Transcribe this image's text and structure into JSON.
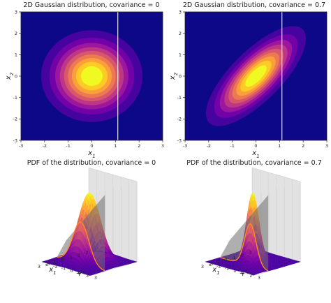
{
  "figure": {
    "panels": [
      {
        "title": "2D Gaussian distribution, covariance = 0",
        "kind": "contour",
        "covariance": 0,
        "xlabel": "x1",
        "ylabel": "x2"
      },
      {
        "title": "2D Gaussian distribution, covariance = 0.7",
        "kind": "contour",
        "covariance": 0.7,
        "xlabel": "x1",
        "ylabel": "x2"
      },
      {
        "title": "PDF of the distribution, covariance = 0",
        "kind": "surface",
        "covariance": 0,
        "xlabel": "x1",
        "ylabel": "x2"
      },
      {
        "title": "PDF of the distribution, covariance = 0.7",
        "kind": "surface",
        "covariance": 0.7,
        "xlabel": "x1",
        "ylabel": "x2"
      }
    ]
  },
  "chart_data": [
    {
      "type": "heatmap",
      "title": "2D Gaussian distribution, covariance = 0",
      "xlabel": "x1",
      "ylabel": "x2",
      "xlim": [
        -3,
        3
      ],
      "ylim": [
        -3,
        3
      ],
      "xticks": [
        -3,
        -2,
        -1,
        0,
        1,
        2,
        3
      ],
      "yticks": [
        -3,
        -2,
        -1,
        0,
        1,
        2,
        3
      ],
      "mean": [
        0,
        0
      ],
      "covariance": 0,
      "variance": [
        1,
        1
      ],
      "contour_levels": 9,
      "colormap": [
        "#0d0887",
        "#46039f",
        "#7201a8",
        "#9c179e",
        "#bd3786",
        "#d8576b",
        "#ed7953",
        "#fb9f3a",
        "#fdca26",
        "#f0f921"
      ],
      "vertical_line_x": 1.1
    },
    {
      "type": "heatmap",
      "title": "2D Gaussian distribution, covariance = 0.7",
      "xlabel": "x1",
      "ylabel": "x2",
      "xlim": [
        -3,
        3
      ],
      "ylim": [
        -3,
        3
      ],
      "xticks": [
        -3,
        -2,
        -1,
        0,
        1,
        2,
        3
      ],
      "yticks": [
        -3,
        -2,
        -1,
        0,
        1,
        2,
        3
      ],
      "mean": [
        0,
        0
      ],
      "covariance": 0.7,
      "variance": [
        1,
        1
      ],
      "contour_levels": 9,
      "colormap": [
        "#0d0887",
        "#46039f",
        "#7201a8",
        "#9c179e",
        "#bd3786",
        "#d8576b",
        "#ed7953",
        "#fb9f3a",
        "#fdca26",
        "#f0f921"
      ],
      "vertical_line_x": 1.1
    },
    {
      "type": "area",
      "title": "PDF of the distribution, covariance = 0",
      "xlabel": "x1",
      "ylabel": "x2",
      "xlim": [
        -3,
        3
      ],
      "ylim": [
        -3,
        3
      ],
      "xticks": [
        -3,
        -2,
        -1,
        0,
        1,
        2,
        3
      ],
      "yticks": [
        -3,
        -2,
        -1,
        0,
        1,
        2,
        3
      ],
      "mean": [
        0,
        0
      ],
      "covariance": 0,
      "slice_plane_x": 1.1,
      "conditional_curve_color": "#ff8c1a"
    },
    {
      "type": "area",
      "title": "PDF of the distribution, covariance = 0.7",
      "xlabel": "x1",
      "ylabel": "x2",
      "xlim": [
        -3,
        3
      ],
      "ylim": [
        -3,
        3
      ],
      "xticks": [
        -3,
        -2,
        -1,
        0,
        1,
        2,
        3
      ],
      "yticks": [
        -3,
        -2,
        -1,
        0,
        1,
        2,
        3
      ],
      "mean": [
        0,
        0
      ],
      "covariance": 0.7,
      "slice_plane_x": 1.1,
      "conditional_curve_color": "#ff8c1a"
    }
  ]
}
